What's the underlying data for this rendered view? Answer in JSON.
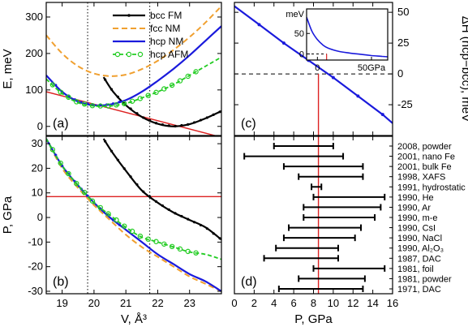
{
  "chart_data": [
    {
      "panel": "a",
      "type": "line",
      "label": "(a)",
      "ylabel": "E, meV",
      "xlim": [
        18.5,
        24.0
      ],
      "ylim": [
        -25,
        340
      ],
      "xticks": [
        19,
        20,
        21,
        22,
        23
      ],
      "yticks": [
        0,
        100,
        200,
        300
      ],
      "colors": {
        "bcc": "#000000",
        "fcc": "#f0a030",
        "hcp": "#1a1adc",
        "afm": "#22cc22",
        "tangent": "#dd2222"
      },
      "series": [
        {
          "name": "bcc FM",
          "x": [
            20.3,
            20.6,
            21.0,
            21.5,
            22.0,
            22.5,
            23.0,
            23.5,
            24.0
          ],
          "y": [
            135,
            95,
            58,
            26,
            7,
            0,
            6,
            22,
            42
          ]
        },
        {
          "name": "fcc  NM",
          "x": [
            18.5,
            19.0,
            19.5,
            20.0,
            20.5,
            21.0,
            21.5,
            22.0,
            22.5,
            23.0,
            23.5,
            24.0
          ],
          "y": [
            250,
            200,
            165,
            145,
            138,
            142,
            157,
            180,
            210,
            245,
            285,
            330
          ]
        },
        {
          "name": "hcp NM",
          "x": [
            18.5,
            19.0,
            19.5,
            20.0,
            20.5,
            21.0,
            21.5,
            22.0,
            22.5,
            23.0,
            23.5,
            24.0
          ],
          "y": [
            140,
            95,
            68,
            58,
            60,
            72,
            95,
            125,
            158,
            195,
            235,
            275
          ]
        },
        {
          "name": "hcp AFM",
          "x": [
            18.5,
            19.0,
            19.5,
            20.0,
            20.5,
            21.0,
            21.5,
            22.0,
            22.5,
            23.0,
            23.5,
            24.0
          ],
          "y": [
            130,
            90,
            65,
            56,
            56,
            63,
            78,
            95,
            115,
            140,
            165,
            190
          ]
        }
      ],
      "tangent": {
        "x": [
          18.5,
          24.0
        ],
        "y": [
          95,
          -30
        ]
      },
      "vlines": [
        19.8,
        21.75
      ]
    },
    {
      "panel": "b",
      "type": "line",
      "label": "(b)",
      "xlabel": "V, Å³",
      "ylabel": "P,  GPa",
      "xlim": [
        18.5,
        24.0
      ],
      "ylim": [
        -31,
        33
      ],
      "xticks": [
        19,
        20,
        21,
        22,
        23
      ],
      "xticklabels": [
        "19",
        "20",
        "21",
        "22",
        "23"
      ],
      "yticks": [
        -30,
        -20,
        -10,
        0,
        10,
        20,
        30
      ],
      "series": [
        {
          "name": "bcc FM",
          "x": [
            20.3,
            20.6,
            21.0,
            21.5,
            22.0,
            22.5,
            23.0,
            23.5,
            24.0
          ],
          "y": [
            32,
            26,
            19,
            11,
            6,
            2,
            -1,
            -4,
            -9
          ]
        },
        {
          "name": "fcc  NM",
          "x": [
            18.5,
            19.0,
            19.5,
            20.0,
            20.5,
            21.0,
            21.5,
            22.0,
            22.5,
            23.0,
            23.5,
            24.0
          ],
          "y": [
            32,
            20,
            12,
            5,
            -1,
            -7,
            -12,
            -16,
            -20,
            -24,
            -27,
            -30
          ]
        },
        {
          "name": "hcp NM",
          "x": [
            18.5,
            19.0,
            19.5,
            20.0,
            20.5,
            21.0,
            21.5,
            22.0,
            22.5,
            23.0,
            23.5,
            24.0
          ],
          "y": [
            32,
            21,
            13,
            6,
            0,
            -5,
            -10,
            -15,
            -19,
            -23,
            -26,
            -30
          ]
        },
        {
          "name": "hcp AFM",
          "x": [
            18.5,
            19.0,
            19.5,
            20.0,
            20.5,
            21.0,
            21.5,
            22.0,
            22.5,
            23.0,
            23.5,
            24.0
          ],
          "y": [
            32,
            21,
            13,
            6,
            1,
            -4,
            -8,
            -10,
            -12,
            -14,
            -15,
            -17
          ]
        }
      ],
      "hline": 8.5,
      "vlines": [
        19.8,
        21.75
      ]
    },
    {
      "panel": "c",
      "type": "line",
      "label": "(c)",
      "ylabel": "ΔH (hcp−bcc), meV",
      "xlim": [
        0,
        16
      ],
      "ylim": [
        -50,
        58
      ],
      "yticks": [
        -25,
        0,
        25,
        50
      ],
      "series": [
        {
          "name": "ΔH",
          "x": [
            0,
            2.5,
            5,
            7.5,
            10,
            12.5,
            15,
            16
          ],
          "y": [
            55,
            40,
            25,
            11,
            -3,
            -18,
            -33,
            -40
          ]
        }
      ],
      "hline": 0,
      "vline": 8.5,
      "inset": {
        "xlim": [
          -10,
          65
        ],
        "ylim": [
          -15,
          110
        ],
        "unit_y": "meV",
        "yticks": [
          0,
          50
        ],
        "xticks": [
          0,
          50
        ],
        "xticklabels": [
          "0",
          "50GPa"
        ],
        "series": [
          {
            "name": "ΔH",
            "x": [
              -10,
              -5,
              0,
              5,
              10,
              20,
              30,
              40,
              50,
              60,
              65
            ],
            "y": [
              90,
              55,
              35,
              22,
              14,
              6,
              2,
              -1,
              -4,
              -6,
              -7
            ]
          }
        ],
        "vline": 8.5
      }
    },
    {
      "panel": "d",
      "type": "bar",
      "label": "(d)",
      "xlabel": "P,  GPa",
      "xlim": [
        0,
        16
      ],
      "xticks": [
        0,
        2,
        4,
        6,
        8,
        10,
        12,
        14,
        16
      ],
      "vline": 8.5,
      "categories": [
        "2008, powder",
        "2001, nano Fe",
        "2001, bulk Fe",
        "1998, XAFS",
        "1991, hydrostatic",
        "1990, He",
        "1990, Ar",
        "1990, m-e",
        "1990, CsI",
        "1990, NaCl",
        "1990, Al₂O₃",
        "1987, DAC",
        "1981, foil",
        "1981, powder",
        "1971, DAC"
      ],
      "ranges": [
        [
          4,
          10
        ],
        [
          1,
          11
        ],
        [
          5,
          13
        ],
        [
          6.5,
          13
        ],
        [
          7.8,
          8.8
        ],
        [
          8,
          15.2
        ],
        [
          7,
          14.8
        ],
        [
          7,
          14.2
        ],
        [
          5.5,
          12.8
        ],
        [
          5,
          12.2
        ],
        [
          4.2,
          10.5
        ],
        [
          3,
          10.5
        ],
        [
          8,
          15.2
        ],
        [
          6.5,
          13.2
        ],
        [
          4.5,
          13
        ]
      ]
    }
  ]
}
